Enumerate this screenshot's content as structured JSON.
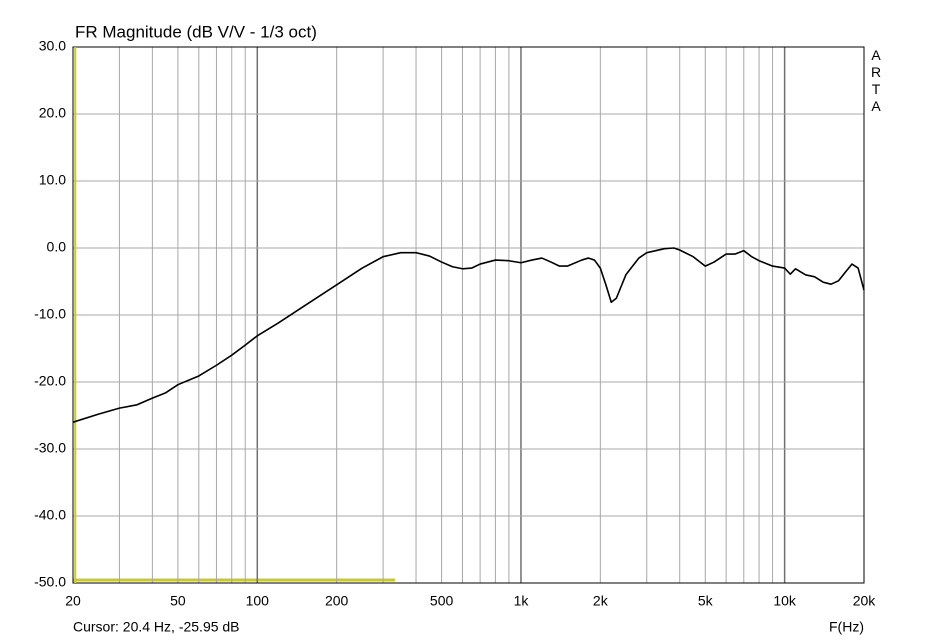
{
  "chart_data": {
    "type": "line",
    "title": "FR Magnitude (dB V/V - 1/3 oct)",
    "watermark": "ARTA",
    "x_label": "F(Hz)",
    "cursor_label": "Cursor: 20.4 Hz, -25.95 dB",
    "cursor_x": 20.4,
    "cursor_color": "#c8c832",
    "color": "#000000",
    "log_x": true,
    "grid": true,
    "xlim": [
      20,
      20000
    ],
    "ylim": [
      -50,
      30
    ],
    "xticks": [
      20,
      50,
      100,
      200,
      500,
      {
        "value": 1000,
        "label": "1k"
      },
      {
        "value": 2000,
        "label": "2k"
      },
      {
        "value": 5000,
        "label": "5k"
      },
      {
        "value": 10000,
        "label": "10k"
      },
      {
        "value": 20000,
        "label": "20k"
      }
    ],
    "x_minor_ticks": [
      30,
      40,
      60,
      70,
      80,
      90,
      300,
      400,
      600,
      700,
      800,
      900,
      3000,
      4000,
      6000,
      7000,
      8000,
      9000
    ],
    "yticks": [
      {
        "value": 30,
        "label": "30.0"
      },
      {
        "value": 20,
        "label": "20.0"
      },
      {
        "value": 10,
        "label": "10.0"
      },
      {
        "value": 0,
        "label": "0.0"
      },
      {
        "value": -10,
        "label": "-10.0"
      },
      {
        "value": -20,
        "label": "-20.0"
      },
      {
        "value": -30,
        "label": "-30.0"
      },
      {
        "value": -40,
        "label": "-40.0"
      },
      {
        "value": -50,
        "label": "-50.0"
      }
    ],
    "x": [
      20,
      25,
      30,
      35,
      40,
      45,
      50,
      60,
      70,
      80,
      90,
      100,
      120,
      150,
      200,
      250,
      300,
      350,
      400,
      450,
      500,
      550,
      600,
      650,
      700,
      800,
      900,
      1000,
      1100,
      1200,
      1300,
      1400,
      1500,
      1700,
      1800,
      1900,
      2000,
      2100,
      2200,
      2300,
      2500,
      2800,
      3000,
      3500,
      3800,
      4000,
      4500,
      5000,
      5400,
      6000,
      6500,
      7000,
      7500,
      8000,
      9000,
      10000,
      10500,
      11000,
      12000,
      13000,
      14000,
      15000,
      16000,
      17000,
      18000,
      19000,
      20000
    ],
    "values": [
      -26.0,
      -24.8,
      -23.9,
      -23.4,
      -22.4,
      -21.6,
      -20.4,
      -19.1,
      -17.5,
      -16.0,
      -14.5,
      -13.1,
      -11.2,
      -8.7,
      -5.5,
      -3.0,
      -1.3,
      -0.7,
      -0.7,
      -1.2,
      -2.1,
      -2.8,
      -3.1,
      -3.0,
      -2.4,
      -1.8,
      -1.9,
      -2.2,
      -1.8,
      -1.5,
      -2.1,
      -2.7,
      -2.7,
      -1.8,
      -1.5,
      -1.8,
      -3.0,
      -5.5,
      -8.1,
      -7.5,
      -4.0,
      -1.5,
      -0.7,
      -0.1,
      0.0,
      -0.3,
      -1.3,
      -2.7,
      -2.1,
      -0.9,
      -0.9,
      -0.4,
      -1.3,
      -1.9,
      -2.7,
      -3.0,
      -3.9,
      -3.1,
      -4.0,
      -4.3,
      -5.1,
      -5.4,
      -4.9,
      -3.6,
      -2.4,
      -3.0,
      -6.3
    ]
  }
}
